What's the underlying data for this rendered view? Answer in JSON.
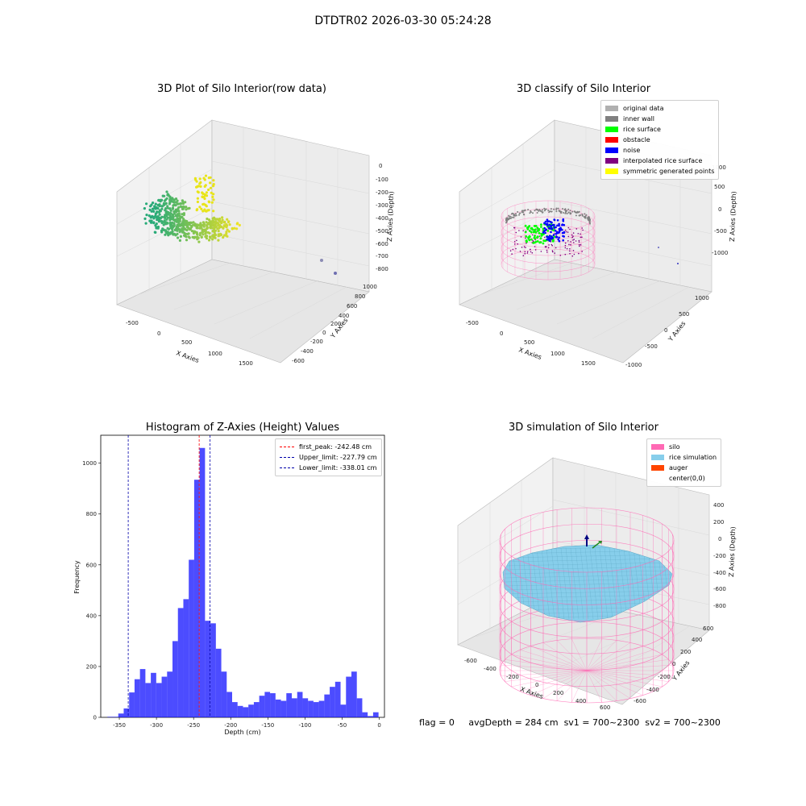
{
  "figure_title": "DTDTR02 2026-03-30 05:24:28",
  "panels": {
    "raw": {
      "title": "3D Plot of Silo Interior(row data)",
      "xlabel": "X Axies",
      "ylabel": "Y Axies",
      "zlabel": "Z Axies (Depth)",
      "xticks": [
        "-500",
        "0",
        "500",
        "1000",
        "1500"
      ],
      "yticks": [
        "1000",
        "800",
        "600",
        "400",
        "200",
        "0",
        "-200",
        "-400",
        "-600"
      ],
      "zticks": [
        "0",
        "-100",
        "-200",
        "-300",
        "-400",
        "-500",
        "-600",
        "-700",
        "-800"
      ]
    },
    "classify": {
      "title": "3D classify of Silo Interior",
      "xlabel": "X Axies",
      "ylabel": "Y Axies",
      "zlabel": "Z Axies (Depth)",
      "xticks": [
        "-500",
        "0",
        "500",
        "1000",
        "1500"
      ],
      "yticks": [
        "1000",
        "500",
        "0",
        "-500",
        "-1000"
      ],
      "zticks": [
        "1000",
        "500",
        "0",
        "-500",
        "-1000"
      ],
      "legend": [
        {
          "label": "original data",
          "color": "#b0b0b0"
        },
        {
          "label": "inner wall",
          "color": "#808080"
        },
        {
          "label": "rice surface",
          "color": "#00ff00"
        },
        {
          "label": "obstacle",
          "color": "#ff0000"
        },
        {
          "label": "noise",
          "color": "#0000ff"
        },
        {
          "label": "interpolated rice surface",
          "color": "#800080"
        },
        {
          "label": "symmetric generated points",
          "color": "#ffff00"
        }
      ]
    },
    "simulation": {
      "title": "3D simulation of Silo Interior",
      "xlabel": "X Axies",
      "ylabel": "Y Axies",
      "zlabel": "Z Axies (Depth)",
      "xticks": [
        "-600",
        "-400",
        "-200",
        "0",
        "200",
        "400",
        "600"
      ],
      "yticks": [
        "600",
        "400",
        "200",
        "0",
        "-200",
        "-400",
        "-600"
      ],
      "zticks": [
        "400",
        "200",
        "0",
        "-200",
        "-400",
        "-600",
        "-800"
      ],
      "legend": [
        {
          "label": "silo",
          "color": "#ff69b4"
        },
        {
          "label": "rice simulation",
          "color": "#87ceeb"
        },
        {
          "label": "auger",
          "color": "#ff4500"
        },
        {
          "label": "center(0,0)",
          "color": "#ffffff"
        }
      ]
    }
  },
  "chart_data": {
    "type": "bar",
    "title": "Histogram of Z-Axies (Height) Values",
    "xlabel": "Depth (cm)",
    "ylabel": "Frequency",
    "xlim": [
      -375,
      7
    ],
    "ylim": [
      0,
      1110
    ],
    "xticks": [
      -350,
      -300,
      -250,
      -200,
      -150,
      -100,
      -50,
      0
    ],
    "yticks": [
      0,
      200,
      400,
      600,
      800,
      1000
    ],
    "bar_color": "#0000ff",
    "bin_width": 7.3,
    "bin_starts": [
      -366,
      -358.7,
      -351.4,
      -344.1,
      -336.8,
      -329.5,
      -322.2,
      -314.9,
      -307.6,
      -300.3,
      -293,
      -285.7,
      -278.4,
      -271.1,
      -263.8,
      -256.5,
      -249.2,
      -241.9,
      -234.6,
      -227.3,
      -220,
      -212.7,
      -205.4,
      -198.1,
      -190.8,
      -183.5,
      -176.2,
      -168.9,
      -161.6,
      -154.3,
      -147,
      -139.7,
      -132.4,
      -125.1,
      -117.8,
      -110.5,
      -103.2,
      -95.9,
      -88.6,
      -81.3,
      -74,
      -66.7,
      -59.4,
      -52.1,
      -44.8,
      -37.5,
      -30.2,
      -22.9,
      -15.6,
      -8.3
    ],
    "values": [
      2,
      2,
      15,
      35,
      98,
      150,
      190,
      135,
      175,
      135,
      160,
      180,
      300,
      430,
      465,
      620,
      935,
      1060,
      380,
      370,
      270,
      180,
      100,
      60,
      45,
      40,
      50,
      60,
      85,
      100,
      95,
      70,
      65,
      95,
      75,
      100,
      75,
      65,
      60,
      65,
      90,
      120,
      140,
      50,
      160,
      180,
      75,
      20,
      5,
      20
    ],
    "reference_lines": [
      {
        "label": "first_peak: -242.48 cm",
        "value": -242.48,
        "color": "#ff0000"
      },
      {
        "label": "Upper_limit: -227.79 cm",
        "value": -227.79,
        "color": "#0000aa"
      },
      {
        "label": "Lower_limit: -338.01 cm",
        "value": -338.01,
        "color": "#0000aa"
      }
    ],
    "legend_position": "top-right"
  },
  "status": {
    "flag": "flag = 0",
    "avg_depth": "avgDepth = 284 cm",
    "sv1": "sv1 = 700~2300",
    "sv2": "sv2 = 700~2300"
  }
}
